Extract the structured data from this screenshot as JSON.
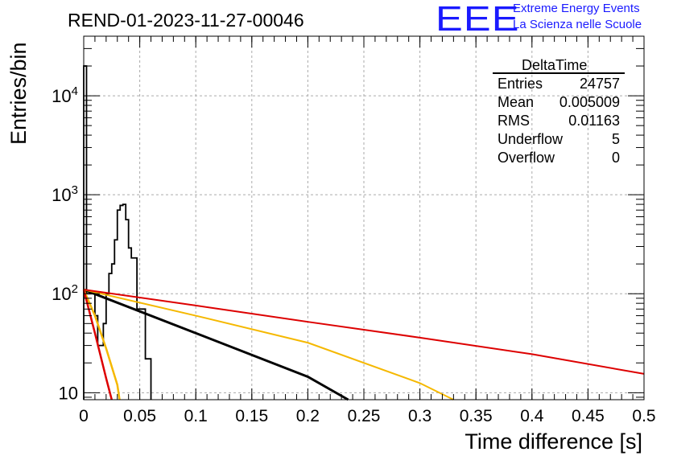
{
  "logo": {
    "mark": "EEE",
    "line1": "Extreme Energy Events",
    "line2": "La Scienza nelle Scuole"
  },
  "colors": {
    "histogram": "#000000",
    "fit_black": "#000000",
    "fit_yellow": "#f5b800",
    "fit_red": "#dd0000",
    "grid": "#aaaaaa",
    "logo": "#1a1aff"
  },
  "stats": {
    "title": "DeltaTime",
    "rows": [
      {
        "label": "Entries",
        "value": "24757"
      },
      {
        "label": "Mean",
        "value": "0.005009"
      },
      {
        "label": "RMS",
        "value": "0.01163"
      },
      {
        "label": "Underflow",
        "value": "5"
      },
      {
        "label": "Overflow",
        "value": "0"
      }
    ]
  },
  "chart_data": {
    "type": "line",
    "title": "REND-01-2023-11-27-00046",
    "xlabel": "Time difference [s]",
    "ylabel": "Entries/bin",
    "xlim": [
      0,
      0.5
    ],
    "ylim": [
      8.5,
      40000
    ],
    "yscale": "log",
    "grid": true,
    "xticks": [
      "0",
      "0.05",
      "0.1",
      "0.15",
      "0.2",
      "0.25",
      "0.3",
      "0.35",
      "0.4",
      "0.45",
      "0.5"
    ],
    "yticks": [
      {
        "value": 10,
        "base": "10",
        "exp": ""
      },
      {
        "value": 100,
        "base": "10",
        "exp": "2"
      },
      {
        "value": 1000,
        "base": "10",
        "exp": "3"
      },
      {
        "value": 10000,
        "base": "10",
        "exp": "4"
      }
    ],
    "histogram": {
      "bin_edges": [
        0,
        0.0025,
        0.005,
        0.0075,
        0.01,
        0.0125,
        0.015,
        0.0175,
        0.02,
        0.0225,
        0.025,
        0.0275,
        0.03,
        0.0325,
        0.035,
        0.0375,
        0.04,
        0.0425,
        0.045,
        0.0475,
        0.05,
        0.0525,
        0.055,
        0.0575,
        0.06
      ],
      "counts": [
        20000,
        100,
        100,
        100,
        60,
        30,
        30,
        50,
        100,
        160,
        200,
        350,
        700,
        780,
        800,
        560,
        290,
        230,
        230,
        70,
        70,
        70,
        22,
        22
      ]
    },
    "series": [
      {
        "x": [
          0,
          0.1,
          0.2,
          0.236
        ],
        "y": [
          110,
          40,
          14.5,
          8.5
        ]
      },
      {
        "x": [
          0,
          0.1,
          0.2,
          0.3,
          0.33
        ],
        "y": [
          110,
          60,
          32,
          12.5,
          8.5
        ]
      },
      {
        "x": [
          0,
          0.1,
          0.2,
          0.3,
          0.4,
          0.5
        ],
        "y": [
          110,
          76,
          52,
          36,
          24.5,
          15.5
        ]
      },
      {
        "x": [
          0,
          0.01,
          0.02,
          0.03,
          0.032
        ],
        "y": [
          110,
          60,
          28,
          12,
          8.5
        ]
      },
      {
        "x": [
          0,
          0.01,
          0.02,
          0.025
        ],
        "y": [
          110,
          40,
          14,
          8.5
        ]
      }
    ]
  }
}
